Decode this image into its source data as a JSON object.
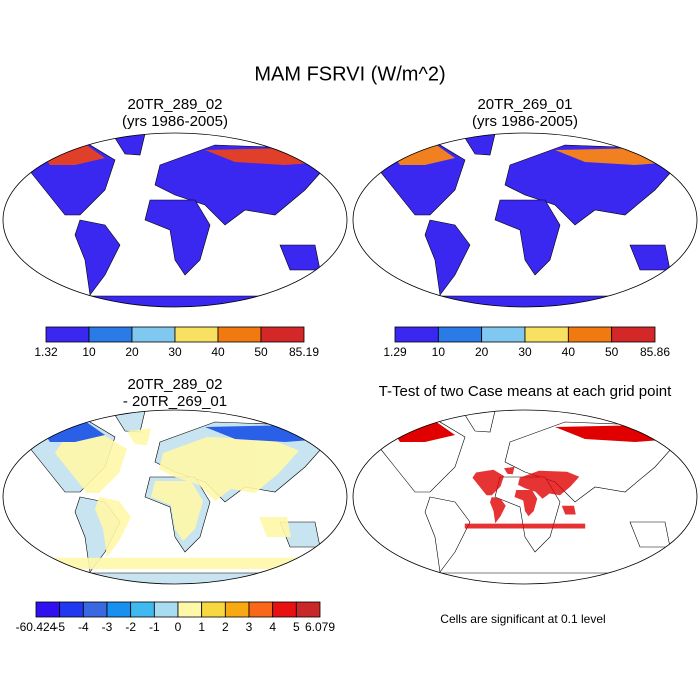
{
  "title": "MAM FSRVI (W/m^2)",
  "panels": [
    {
      "title_lines": [
        "20TR_289_02",
        "(yrs 1986-2005)"
      ],
      "colorbar": {
        "colors": [
          "#3a28f0",
          "#2a7ae8",
          "#80c8f0",
          "#f8e060",
          "#f07a10",
          "#d42828"
        ],
        "labels": [
          "1.32",
          "10",
          "20",
          "30",
          "40",
          "50",
          "85.19"
        ]
      }
    },
    {
      "title_lines": [
        "20TR_269_01",
        "(yrs 1986-2005)"
      ],
      "colorbar": {
        "colors": [
          "#3a28f0",
          "#2a7ae8",
          "#80c8f0",
          "#f8e060",
          "#f07a10",
          "#d42828"
        ],
        "labels": [
          "1.29",
          "10",
          "20",
          "30",
          "40",
          "50",
          "85.86"
        ]
      }
    },
    {
      "title_lines": [
        "20TR_289_02",
        "- 20TR_269_01"
      ],
      "colorbar": {
        "colors": [
          "#3010f0",
          "#2038f0",
          "#3a68e0",
          "#1890f0",
          "#40b8f0",
          "#a8dcf0",
          "#fff8a8",
          "#f8d840",
          "#f8a810",
          "#f86818",
          "#e81010",
          "#c82828"
        ],
        "labels": [
          "-60.424",
          "-5",
          "-4",
          "-3",
          "-2",
          "-1",
          "0",
          "1",
          "2",
          "3",
          "4",
          "5",
          "6.079"
        ]
      }
    },
    {
      "title_lines": [
        "T-Test of two Case means at each grid point"
      ],
      "note": "Cells are significant at 0.1 level"
    }
  ]
}
